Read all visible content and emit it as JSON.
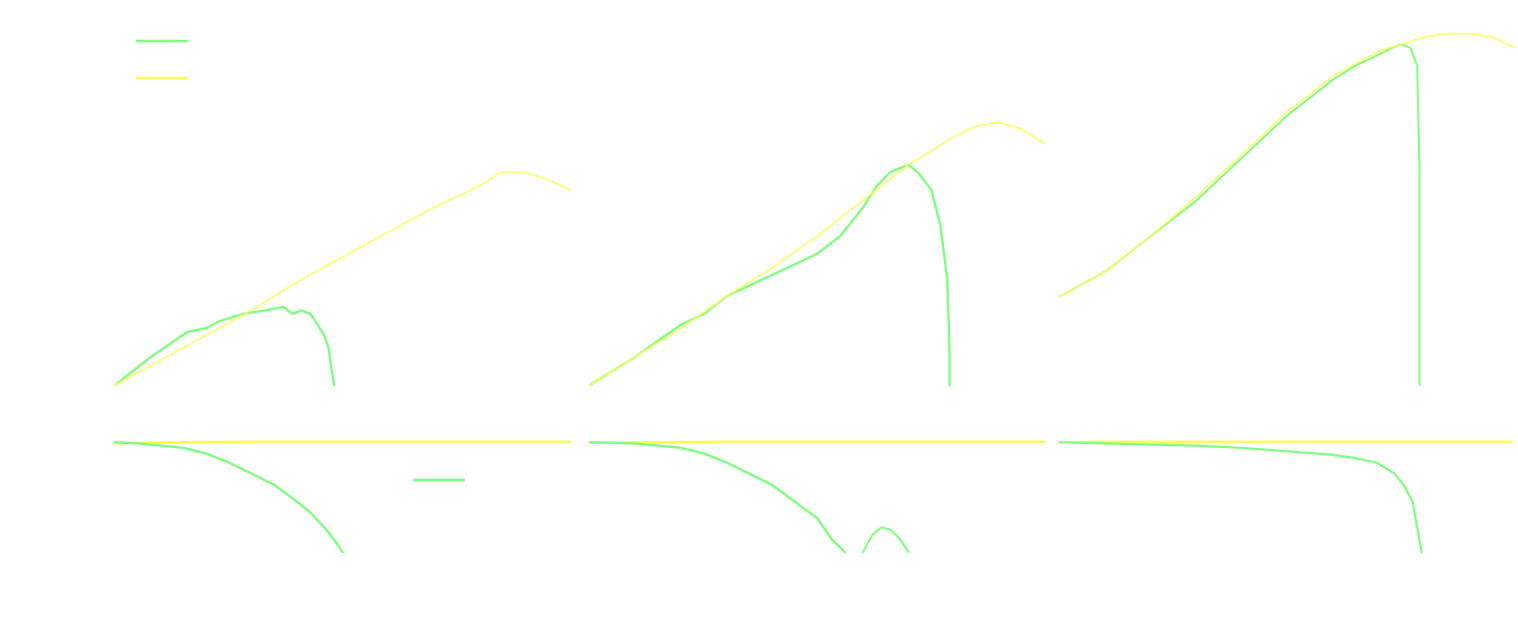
{
  "chart_data": [
    {
      "id": "top-left",
      "type": "line",
      "title": "",
      "xlabel": "",
      "ylabel": "",
      "xlim": [
        0,
        1
      ],
      "ylim": [
        0,
        1
      ],
      "grid": false,
      "legend": "top-left",
      "series": [
        {
          "color": "#7fff7f",
          "stroke_width": 2.4,
          "opacity": 1,
          "legend": true,
          "x": [
            0.0,
            0.08,
            0.16,
            0.2,
            0.23,
            0.28,
            0.33,
            0.37,
            0.39,
            0.41,
            0.43,
            0.45,
            0.46,
            0.47,
            0.475,
            0.482
          ],
          "y": [
            0.0,
            0.08,
            0.15,
            0.16,
            0.18,
            0.2,
            0.21,
            0.22,
            0.2,
            0.21,
            0.2,
            0.16,
            0.14,
            0.1,
            0.05,
            0.0
          ]
        },
        {
          "color": "#ffff55",
          "stroke_width": 1.6,
          "opacity": 0.9,
          "legend": true,
          "x": [
            0.0,
            0.1,
            0.2,
            0.3,
            0.4,
            0.5,
            0.6,
            0.7,
            0.8,
            0.85,
            0.9,
            0.95,
            1.0
          ],
          "y": [
            0.0,
            0.07,
            0.14,
            0.21,
            0.29,
            0.36,
            0.43,
            0.5,
            0.56,
            0.6,
            0.6,
            0.58,
            0.55
          ]
        }
      ]
    },
    {
      "id": "top-middle",
      "type": "line",
      "title": "",
      "xlabel": "",
      "ylabel": "",
      "xlim": [
        0,
        1
      ],
      "ylim": [
        0,
        1
      ],
      "grid": false,
      "legend": "",
      "series": [
        {
          "color": "#7fff7f",
          "stroke_width": 2.4,
          "opacity": 1,
          "x": [
            0.0,
            0.1,
            0.2,
            0.25,
            0.3,
            0.35,
            0.4,
            0.45,
            0.5,
            0.55,
            0.6,
            0.63,
            0.66,
            0.7,
            0.72,
            0.75,
            0.77,
            0.785,
            0.79,
            0.79
          ],
          "y": [
            0.0,
            0.08,
            0.17,
            0.2,
            0.25,
            0.28,
            0.31,
            0.34,
            0.37,
            0.42,
            0.5,
            0.56,
            0.6,
            0.62,
            0.6,
            0.55,
            0.45,
            0.3,
            0.1,
            0.0
          ]
        },
        {
          "color": "#ffff55",
          "stroke_width": 1.6,
          "opacity": 0.9,
          "x": [
            0.0,
            0.1,
            0.2,
            0.3,
            0.4,
            0.5,
            0.6,
            0.7,
            0.8,
            0.85,
            0.9,
            0.95,
            1.0
          ],
          "y": [
            0.0,
            0.08,
            0.16,
            0.25,
            0.33,
            0.42,
            0.52,
            0.62,
            0.7,
            0.73,
            0.74,
            0.72,
            0.68
          ]
        }
      ]
    },
    {
      "id": "top-right",
      "type": "line",
      "title": "",
      "xlabel": "",
      "ylabel": "",
      "xlim": [
        0,
        1
      ],
      "ylim": [
        0,
        1
      ],
      "grid": false,
      "legend": "",
      "series": [
        {
          "color": "#7fff7f",
          "stroke_width": 2.0,
          "opacity": 1,
          "x": [
            0.0,
            0.1,
            0.2,
            0.3,
            0.4,
            0.5,
            0.6,
            0.65,
            0.7,
            0.73,
            0.75,
            0.77,
            0.785,
            0.79,
            0.79
          ],
          "y": [
            0.25,
            0.32,
            0.42,
            0.52,
            0.64,
            0.76,
            0.86,
            0.9,
            0.93,
            0.95,
            0.96,
            0.95,
            0.9,
            0.6,
            0.0
          ]
        },
        {
          "color": "#ffff55",
          "stroke_width": 1.6,
          "opacity": 0.9,
          "x": [
            0.0,
            0.1,
            0.2,
            0.3,
            0.4,
            0.5,
            0.6,
            0.7,
            0.8,
            0.85,
            0.9,
            0.95,
            1.0
          ],
          "y": [
            0.25,
            0.32,
            0.42,
            0.53,
            0.65,
            0.77,
            0.87,
            0.94,
            0.98,
            0.99,
            0.99,
            0.98,
            0.95
          ]
        }
      ]
    },
    {
      "id": "bottom-left",
      "type": "line",
      "title": "",
      "xlabel": "",
      "ylabel": "",
      "xlim": [
        0,
        1
      ],
      "ylim": [
        0,
        1
      ],
      "grid": false,
      "legend": "",
      "series": [
        {
          "color": "#ffff33",
          "stroke_width": 2.2,
          "opacity": 1,
          "x": [
            0.0,
            0.1,
            0.3,
            0.5,
            0.7,
            0.9,
            1.0
          ],
          "y": [
            0.97,
            0.98,
            0.985,
            0.985,
            0.985,
            0.985,
            0.985
          ]
        },
        {
          "color": "#7fff7f",
          "stroke_width": 2.4,
          "opacity": 1,
          "x": [
            0.0,
            0.05,
            0.1,
            0.15,
            0.2,
            0.25,
            0.3,
            0.35,
            0.4,
            0.43,
            0.46,
            0.48,
            0.5
          ],
          "y": [
            0.98,
            0.97,
            0.95,
            0.93,
            0.88,
            0.8,
            0.7,
            0.6,
            0.45,
            0.35,
            0.22,
            0.12,
            0.0
          ]
        }
      ]
    },
    {
      "id": "bottom-middle",
      "type": "line",
      "title": "",
      "xlabel": "",
      "ylabel": "",
      "xlim": [
        0,
        1
      ],
      "ylim": [
        0,
        1
      ],
      "grid": false,
      "legend": "top",
      "series": [
        {
          "color": "#ffff33",
          "stroke_width": 2.2,
          "opacity": 1,
          "x": [
            0.0,
            0.1,
            0.3,
            0.5,
            0.7,
            0.9,
            1.0
          ],
          "y": [
            0.975,
            0.98,
            0.985,
            0.985,
            0.985,
            0.985,
            0.985
          ]
        },
        {
          "color": "#7fff7f",
          "stroke_width": 2.4,
          "opacity": 1,
          "legend": true,
          "x": [
            0.0,
            0.1,
            0.2,
            0.25,
            0.3,
            0.35,
            0.4,
            0.45,
            0.5,
            0.53,
            0.56
          ],
          "y": [
            0.98,
            0.97,
            0.93,
            0.88,
            0.8,
            0.7,
            0.6,
            0.45,
            0.3,
            0.12,
            0.0
          ]
        },
        {
          "color": "#7fff7f",
          "stroke_width": 2.0,
          "opacity": 1,
          "x": [
            0.6,
            0.62,
            0.64,
            0.66,
            0.68,
            0.7
          ],
          "y": [
            0.0,
            0.15,
            0.22,
            0.2,
            0.12,
            0.0
          ]
        }
      ]
    },
    {
      "id": "bottom-right",
      "type": "line",
      "title": "",
      "xlabel": "",
      "ylabel": "",
      "xlim": [
        0,
        1
      ],
      "ylim": [
        0,
        1
      ],
      "grid": false,
      "legend": "",
      "series": [
        {
          "color": "#ffff33",
          "stroke_width": 2.2,
          "opacity": 1,
          "x": [
            0.0,
            0.1,
            0.3,
            0.5,
            0.7,
            0.9,
            1.0
          ],
          "y": [
            0.98,
            0.985,
            0.985,
            0.985,
            0.985,
            0.985,
            0.985
          ]
        },
        {
          "color": "#7fff7f",
          "stroke_width": 2.2,
          "opacity": 1,
          "x": [
            0.0,
            0.1,
            0.2,
            0.3,
            0.4,
            0.5,
            0.6,
            0.65,
            0.7,
            0.72,
            0.74,
            0.76,
            0.78,
            0.8
          ],
          "y": [
            0.98,
            0.97,
            0.96,
            0.95,
            0.93,
            0.9,
            0.87,
            0.84,
            0.8,
            0.75,
            0.7,
            0.6,
            0.45,
            0.0
          ]
        }
      ]
    }
  ]
}
